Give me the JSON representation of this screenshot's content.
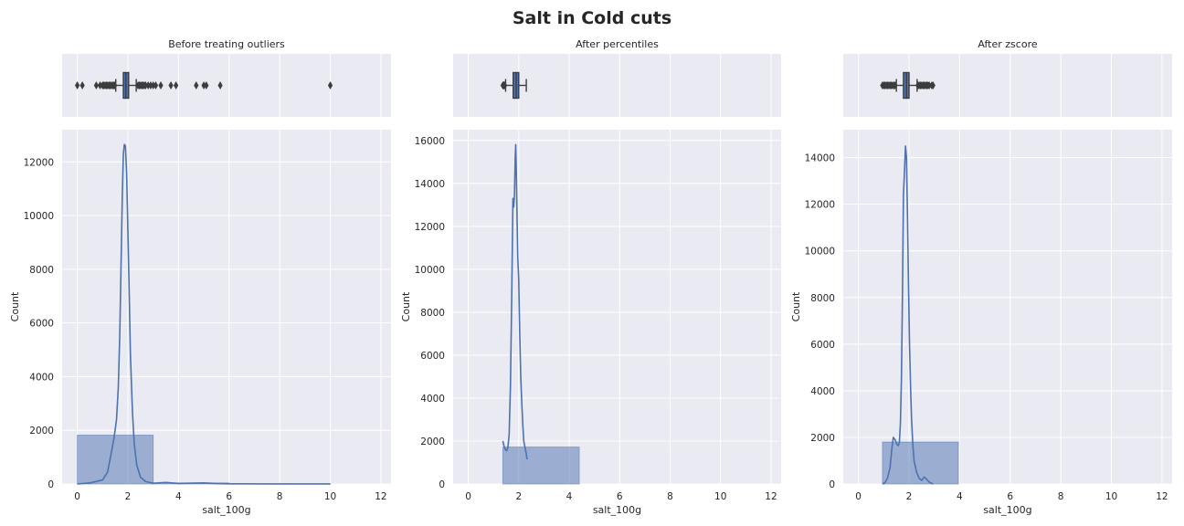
{
  "title": "Salt in Cold cuts",
  "colors": {
    "panel_bg": "#eaeaf2",
    "grid": "#ffffff",
    "line": "#4c72b0",
    "bar_fill": "#4c72b0",
    "box_fill": "#4c72b0",
    "box_edge": "#3d3d3d",
    "text": "#262626"
  },
  "chart_data": [
    {
      "type": "box",
      "title": "Before treating outliers",
      "xlim": [
        -0.6,
        12.4
      ],
      "grid": true,
      "box": {
        "q1": 1.82,
        "q3": 2.03,
        "median": 1.92,
        "whisker_low": 1.52,
        "whisker_high": 2.33
      },
      "outliers": [
        0.0,
        0.2,
        0.75,
        0.9,
        1.0,
        1.05,
        1.1,
        1.15,
        1.2,
        1.25,
        1.3,
        1.35,
        1.4,
        1.45,
        1.48,
        2.4,
        2.45,
        2.5,
        2.55,
        2.6,
        2.65,
        2.7,
        2.8,
        2.9,
        3.0,
        3.1,
        3.3,
        3.7,
        3.9,
        4.7,
        5.0,
        5.1,
        5.65,
        10.0
      ]
    },
    {
      "type": "histogram",
      "title": "",
      "xlabel": "salt_100g",
      "ylabel": "Count",
      "xlim": [
        -0.6,
        12.4
      ],
      "ylim": [
        0,
        13200
      ],
      "xticks": [
        0,
        2,
        4,
        6,
        8,
        10,
        12
      ],
      "yticks": [
        0,
        2000,
        4000,
        6000,
        8000,
        10000,
        12000
      ],
      "grid": true,
      "bins": [
        {
          "x0": 0.0,
          "x1": 3.0,
          "count": 1820
        },
        {
          "x0": 3.0,
          "x1": 6.0,
          "count": 40
        },
        {
          "x0": 6.0,
          "x1": 10.0,
          "count": 15
        }
      ],
      "kde": {
        "x": [
          0.0,
          0.5,
          1.0,
          1.2,
          1.35,
          1.45,
          1.55,
          1.62,
          1.68,
          1.73,
          1.78,
          1.82,
          1.86,
          1.9,
          1.95,
          2.0,
          2.05,
          2.1,
          2.18,
          2.25,
          2.35,
          2.5,
          2.7,
          3.0,
          3.5,
          4.0,
          5.0,
          5.5,
          6.0,
          8.0,
          10.0
        ],
        "y": [
          0,
          40,
          150,
          450,
          1200,
          1700,
          2400,
          3600,
          5600,
          8200,
          10800,
          12300,
          12650,
          12600,
          11600,
          9400,
          7200,
          4800,
          2700,
          1500,
          700,
          250,
          90,
          30,
          60,
          20,
          40,
          15,
          5,
          0,
          0
        ]
      }
    },
    {
      "type": "box",
      "title": "After percentiles",
      "xlim": [
        -0.6,
        12.4
      ],
      "grid": true,
      "box": {
        "q1": 1.78,
        "q3": 2.0,
        "median": 1.9,
        "whisker_low": 1.48,
        "whisker_high": 2.3
      },
      "outliers": [
        1.37,
        1.4,
        1.42,
        1.45
      ]
    },
    {
      "type": "histogram",
      "title": "",
      "xlabel": "salt_100g",
      "ylabel": "Count",
      "xlim": [
        -0.6,
        12.4
      ],
      "ylim": [
        0,
        16500
      ],
      "xticks": [
        0,
        2,
        4,
        6,
        8,
        10,
        12
      ],
      "yticks": [
        0,
        2000,
        4000,
        6000,
        8000,
        10000,
        12000,
        14000,
        16000
      ],
      "grid": true,
      "bins": [
        {
          "x0": 1.37,
          "x1": 4.4,
          "count": 1720
        }
      ],
      "kde": {
        "x": [
          1.37,
          1.42,
          1.47,
          1.52,
          1.57,
          1.62,
          1.67,
          1.72,
          1.77,
          1.8,
          1.83,
          1.86,
          1.88,
          1.9,
          1.93,
          1.96,
          2.0,
          2.04,
          2.08,
          2.12,
          2.16,
          2.2,
          2.25,
          2.3,
          2.33
        ],
        "y": [
          2000,
          1750,
          1600,
          1550,
          1700,
          2300,
          4500,
          8500,
          13300,
          12900,
          13400,
          15200,
          15800,
          14800,
          12700,
          10600,
          9500,
          7000,
          5000,
          3800,
          2800,
          2000,
          1700,
          1400,
          1150
        ]
      }
    },
    {
      "type": "box",
      "title": "After zscore",
      "xlim": [
        -0.6,
        12.4
      ],
      "grid": true,
      "box": {
        "q1": 1.78,
        "q3": 2.0,
        "median": 1.9,
        "whisker_low": 1.5,
        "whisker_high": 2.32
      },
      "outliers": [
        0.95,
        1.0,
        1.05,
        1.1,
        1.15,
        1.2,
        1.25,
        1.3,
        1.35,
        1.4,
        1.45,
        2.35,
        2.4,
        2.45,
        2.5,
        2.55,
        2.6,
        2.65,
        2.7,
        2.75,
        2.8,
        2.9,
        2.95
      ]
    },
    {
      "type": "histogram",
      "title": "",
      "xlabel": "salt_100g",
      "ylabel": "Count",
      "xlim": [
        -0.6,
        12.4
      ],
      "ylim": [
        0,
        15200
      ],
      "xticks": [
        0,
        2,
        4,
        6,
        8,
        10,
        12
      ],
      "yticks": [
        0,
        2000,
        4000,
        6000,
        8000,
        10000,
        12000,
        14000
      ],
      "grid": true,
      "bins": [
        {
          "x0": 0.95,
          "x1": 3.95,
          "count": 1800
        }
      ],
      "kde": {
        "x": [
          0.95,
          1.05,
          1.15,
          1.25,
          1.32,
          1.38,
          1.45,
          1.52,
          1.58,
          1.62,
          1.66,
          1.7,
          1.74,
          1.78,
          1.82,
          1.86,
          1.9,
          1.94,
          1.98,
          2.02,
          2.06,
          2.1,
          2.15,
          2.2,
          2.3,
          2.4,
          2.5,
          2.6,
          2.7,
          2.8,
          2.95
        ],
        "y": [
          0,
          60,
          250,
          700,
          1500,
          2000,
          1900,
          1700,
          1650,
          1800,
          2600,
          4500,
          8000,
          12400,
          13400,
          14500,
          14000,
          11500,
          8500,
          6000,
          4200,
          2800,
          1700,
          1000,
          500,
          250,
          150,
          300,
          200,
          80,
          0
        ]
      }
    }
  ]
}
